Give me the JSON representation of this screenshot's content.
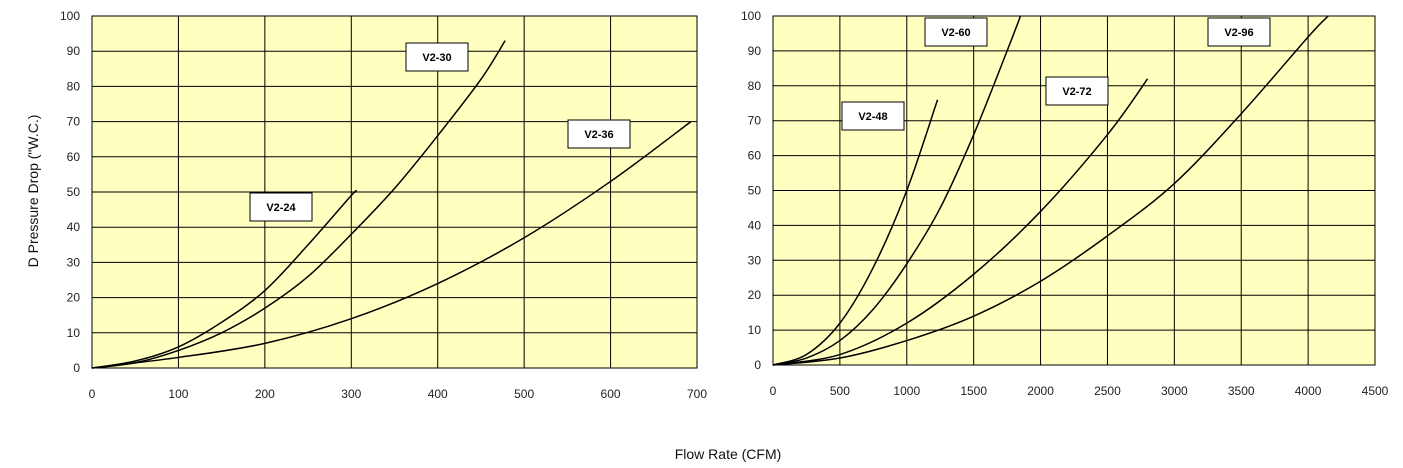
{
  "shared": {
    "ylabel": "D Pressure Drop (\"W.C.)",
    "xlabel": "Flow Rate (CFM)"
  },
  "chart_data": [
    {
      "type": "line",
      "title": "",
      "xlabel": "Flow Rate (CFM)",
      "ylabel": "D Pressure Drop (\"W.C.)",
      "xlim": [
        0,
        700
      ],
      "ylim": [
        0,
        100
      ],
      "x_ticks": [
        0,
        100,
        200,
        300,
        400,
        500,
        600,
        700
      ],
      "y_ticks": [
        0,
        10,
        20,
        30,
        40,
        50,
        60,
        70,
        80,
        90,
        100
      ],
      "grid": true,
      "background": "#FFFFC0",
      "series": [
        {
          "name": "V2-24",
          "x": [
            0,
            50,
            100,
            150,
            200,
            250,
            300,
            305
          ],
          "y": [
            0,
            2,
            6,
            13,
            22,
            35,
            49,
            50
          ]
        },
        {
          "name": "V2-30",
          "x": [
            0,
            50,
            100,
            150,
            200,
            250,
            300,
            350,
            400,
            450,
            478
          ],
          "y": [
            0,
            1.5,
            5,
            10,
            17,
            26,
            38,
            51,
            66,
            82,
            93
          ]
        },
        {
          "name": "V2-36",
          "x": [
            0,
            100,
            200,
            300,
            400,
            500,
            600,
            693
          ],
          "y": [
            0,
            3,
            7,
            14,
            24,
            37,
            53,
            70
          ]
        }
      ]
    },
    {
      "type": "line",
      "title": "",
      "xlabel": "Flow Rate (CFM)",
      "ylabel": "",
      "xlim": [
        0,
        4500
      ],
      "ylim": [
        0,
        100
      ],
      "x_ticks": [
        0,
        500,
        1000,
        1500,
        2000,
        2500,
        3000,
        3500,
        4000,
        4500
      ],
      "y_ticks": [
        0,
        10,
        20,
        30,
        40,
        50,
        60,
        70,
        80,
        90,
        100
      ],
      "grid": true,
      "background": "#FFFFC0",
      "series": [
        {
          "name": "V2-48",
          "x": [
            0,
            250,
            500,
            750,
            1000,
            1230
          ],
          "y": [
            0,
            3,
            12,
            28,
            50,
            76
          ]
        },
        {
          "name": "V2-60",
          "x": [
            0,
            250,
            500,
            750,
            1000,
            1250,
            1500,
            1750,
            1850
          ],
          "y": [
            0,
            2,
            7,
            16,
            29,
            45,
            66,
            90,
            100
          ]
        },
        {
          "name": "V2-72",
          "x": [
            0,
            500,
            1000,
            1500,
            2000,
            2500,
            2800
          ],
          "y": [
            0,
            3,
            12,
            26,
            44,
            66,
            82
          ]
        },
        {
          "name": "V2-96",
          "x": [
            0,
            500,
            1000,
            1500,
            2000,
            2500,
            3000,
            3500,
            4000,
            4150
          ],
          "y": [
            0,
            2,
            7,
            14,
            24,
            37,
            52,
            72,
            94,
            100
          ]
        }
      ]
    }
  ]
}
